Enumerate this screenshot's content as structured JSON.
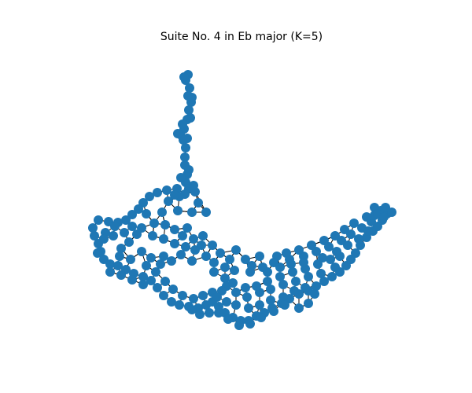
{
  "figure": {
    "title": "Suite No. 4 in Eb major (K=5)",
    "node_color": "#1f77b4",
    "edge_color": "#000000",
    "background": "#ffffff"
  }
}
